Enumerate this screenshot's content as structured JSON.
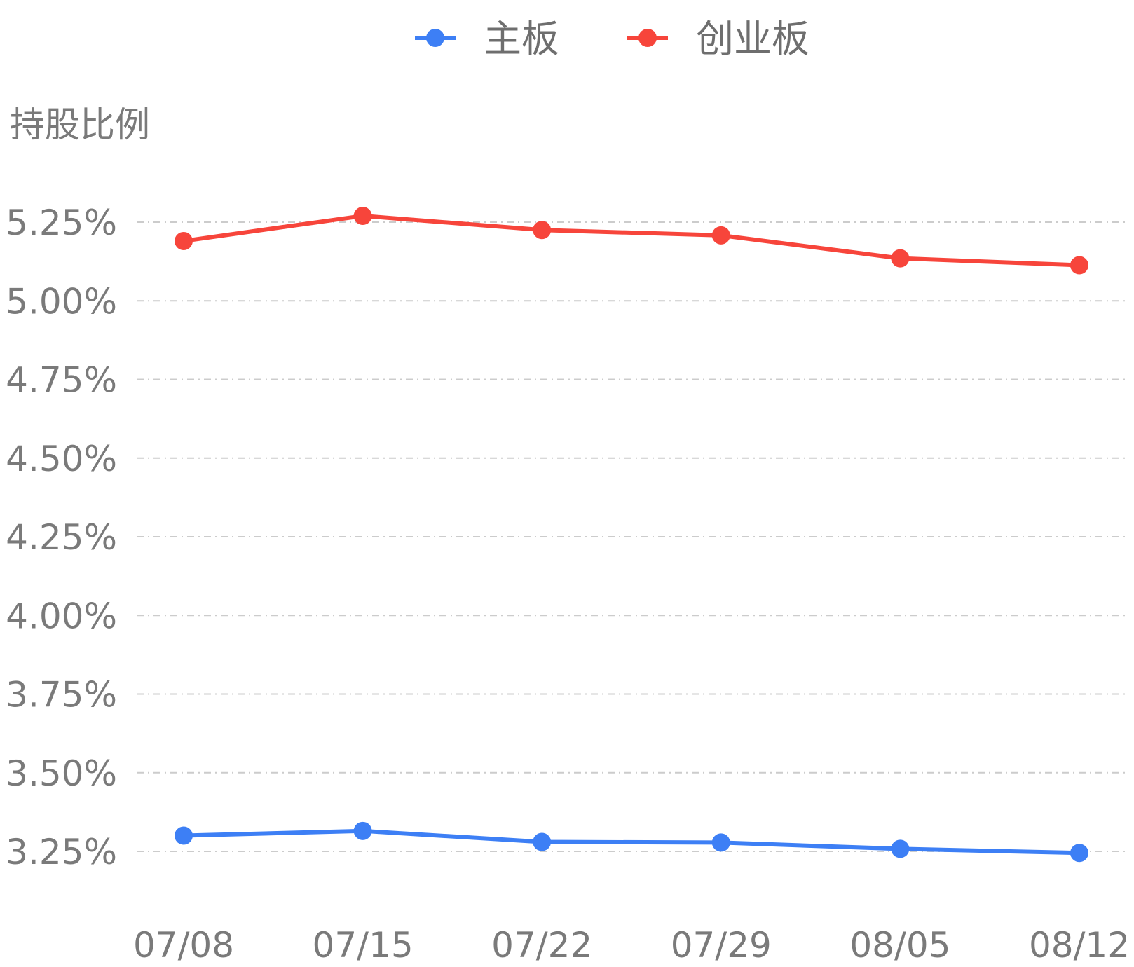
{
  "chart_data": {
    "type": "line",
    "title": "",
    "ylabel": "持股比例",
    "xlabel": "",
    "categories": [
      "07/08",
      "07/15",
      "07/22",
      "07/29",
      "08/05",
      "08/12"
    ],
    "series": [
      {
        "name": "主板",
        "color": "#3d7ff5",
        "values": [
          3.3,
          3.315,
          3.28,
          3.278,
          3.258,
          3.245
        ]
      },
      {
        "name": "创业板",
        "color": "#f7453b",
        "values": [
          5.19,
          5.27,
          5.225,
          5.208,
          5.135,
          5.113
        ]
      }
    ],
    "yticks": [
      "3.25%",
      "3.50%",
      "3.75%",
      "4.00%",
      "4.25%",
      "4.50%",
      "4.75%",
      "5.00%",
      "5.25%"
    ],
    "ytick_values": [
      3.25,
      3.5,
      3.75,
      4.0,
      4.25,
      4.5,
      4.75,
      5.0,
      5.25
    ],
    "ylim": [
      3.25,
      5.25
    ],
    "grid": true,
    "legend_position": "top-center"
  }
}
